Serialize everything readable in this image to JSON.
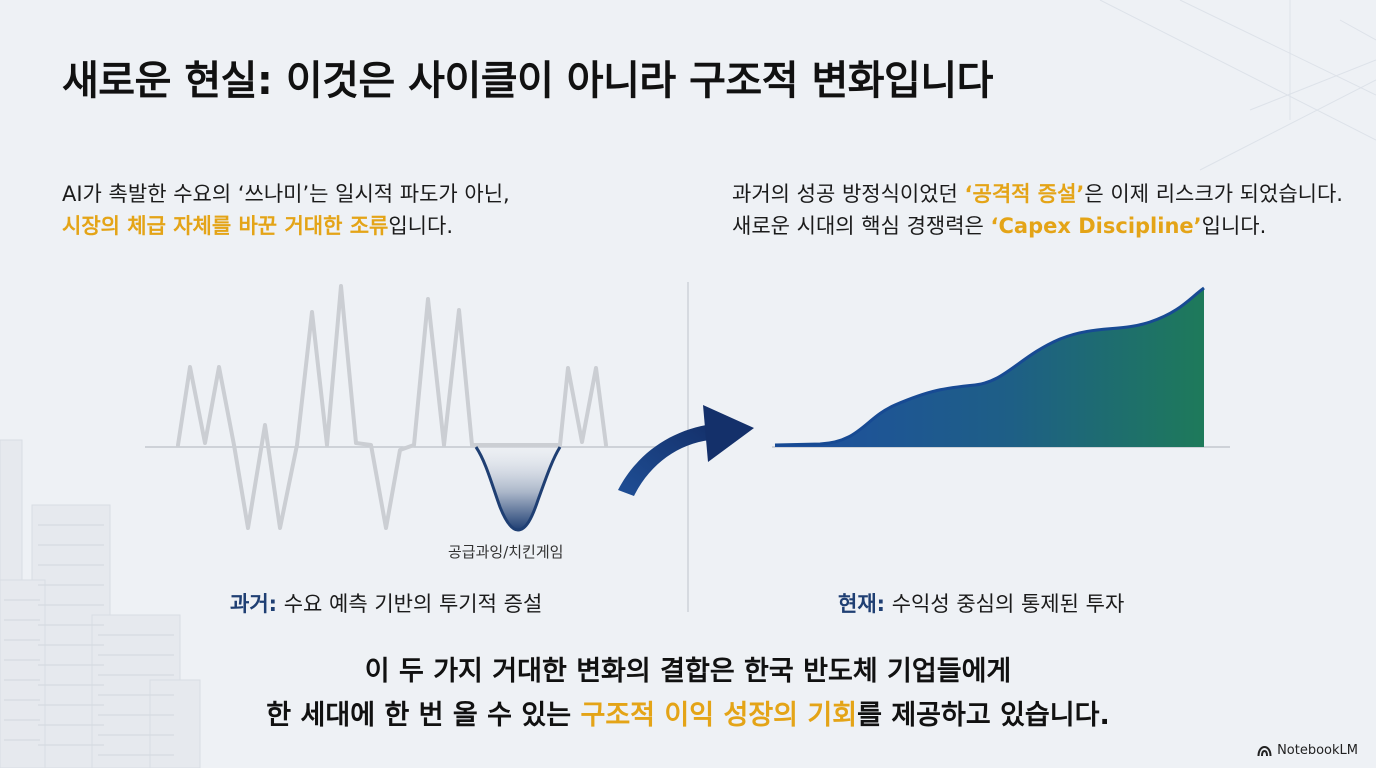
{
  "slide": {
    "title": "새로운 현실: 이것은 사이클이 아니라 구조적 변화입니다",
    "left": {
      "line1": "AI가 촉발한 수요의 ‘쓰나미’는 일시적 파도가 아닌,",
      "line2_highlight": "시장의 체급 자체를 바꾼 거대한 조류",
      "line2_tail": "입니다.",
      "dip_label": "공급과잉/치킨게임",
      "caption_key": "과거:",
      "caption_text": " 수요 예측 기반의 투기적 증설"
    },
    "right": {
      "line1_head": "과거의 성공 방정식이었던 ",
      "line1_highlight": "‘공격적 증설’",
      "line1_tail": "은 이제 리스크가 되었습니다.",
      "line2_head": "새로운 시대의 핵심 경쟁력은 ",
      "line2_highlight": "‘Capex Discipline’",
      "line2_tail": "입니다.",
      "caption_key": "현재:",
      "caption_text": " 수익성 중심의 통제된 투자"
    },
    "conclusion": {
      "line1": "이 두 가지 거대한 변화의 결합은 한국 반도체 기업들에게",
      "line2_head": "한 세대에 한 번 올 수 있는 ",
      "line2_highlight": "구조적 이익 성장의 기회",
      "line2_tail": "를 제공하고 있습니다."
    },
    "brand": "NotebookLM"
  },
  "colors": {
    "background": "#eef1f5",
    "highlight": "#e4a417",
    "caption_key": "#1f3f73",
    "past_line": "#c9ccd1",
    "dip_fill": "#1f3f73",
    "area_start": "#1e4ea0",
    "area_end": "#1e7a5a",
    "arrow": "#163a78"
  },
  "icons": {
    "arrow": "curved-arrow-icon",
    "brand": "notebooklm-logo-icon"
  }
}
